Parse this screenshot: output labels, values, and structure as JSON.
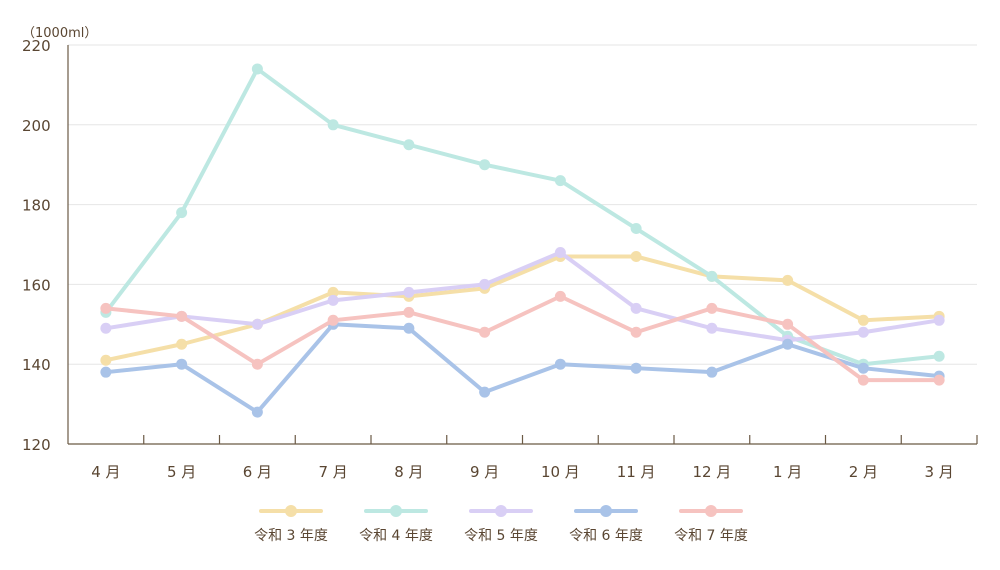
{
  "chart_data": {
    "type": "line",
    "unit_label": "（1000ml）",
    "categories": [
      "4 月",
      "5 月",
      "6 月",
      "7 月",
      "8 月",
      "9 月",
      "10 月",
      "11 月",
      "12 月",
      "1 月",
      "2 月",
      "3 月"
    ],
    "ylim": [
      120,
      220
    ],
    "yticks": [
      120,
      140,
      160,
      180,
      200,
      220
    ],
    "grid": true,
    "legend_position": "bottom",
    "series": [
      {
        "name": "令和 3 年度",
        "color": "#f5dfa8",
        "values": [
          141,
          145,
          150,
          158,
          157,
          159,
          167,
          167,
          162,
          161,
          151,
          152
        ]
      },
      {
        "name": "令和 4 年度",
        "color": "#bde8e2",
        "values": [
          153,
          178,
          214,
          200,
          195,
          190,
          186,
          174,
          162,
          147,
          140,
          142
        ]
      },
      {
        "name": "令和 5 年度",
        "color": "#d9cff5",
        "values": [
          149,
          152,
          150,
          156,
          158,
          160,
          168,
          154,
          149,
          146,
          148,
          151
        ]
      },
      {
        "name": "令和 6 年度",
        "color": "#a9c3e8",
        "values": [
          138,
          140,
          128,
          150,
          149,
          133,
          140,
          139,
          138,
          145,
          139,
          137
        ]
      },
      {
        "name": "令和 7 年度",
        "color": "#f6c3c0",
        "values": [
          154,
          152,
          140,
          151,
          153,
          148,
          157,
          148,
          154,
          150,
          136,
          136
        ]
      }
    ]
  }
}
